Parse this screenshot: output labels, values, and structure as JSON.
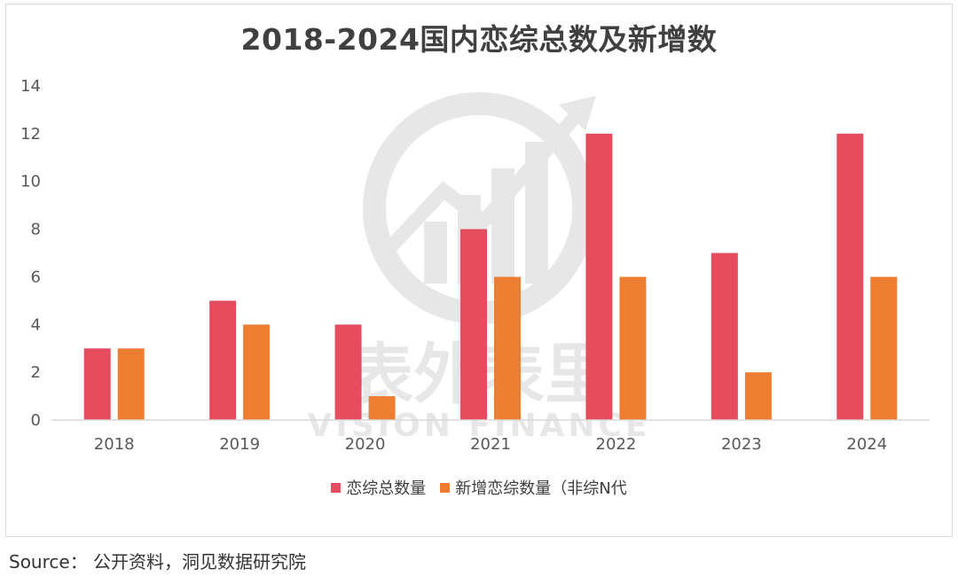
{
  "chart_data": {
    "type": "bar",
    "title": "2018-2024国内恋综总数及新增数",
    "categories": [
      "2018",
      "2019",
      "2020",
      "2021",
      "2022",
      "2023",
      "2024"
    ],
    "series": [
      {
        "name": "恋综总数量",
        "color": "#E54C5E",
        "values": [
          3,
          5,
          4,
          8,
          12,
          7,
          12
        ]
      },
      {
        "name": "新增恋综数量（非综N代",
        "color": "#ED7D31",
        "values": [
          3,
          4,
          1,
          6,
          6,
          2,
          6
        ]
      }
    ],
    "ylim": [
      0,
      14
    ],
    "yticks": [
      "0",
      "2",
      "4",
      "6",
      "8",
      "10",
      "12",
      "14"
    ],
    "grid": false,
    "legend": "bottom"
  },
  "watermark": {
    "text_cn": "表外表里",
    "text_en": "VISION FINANCE"
  },
  "source": "Source： 公开资料，洞见数据研究院"
}
